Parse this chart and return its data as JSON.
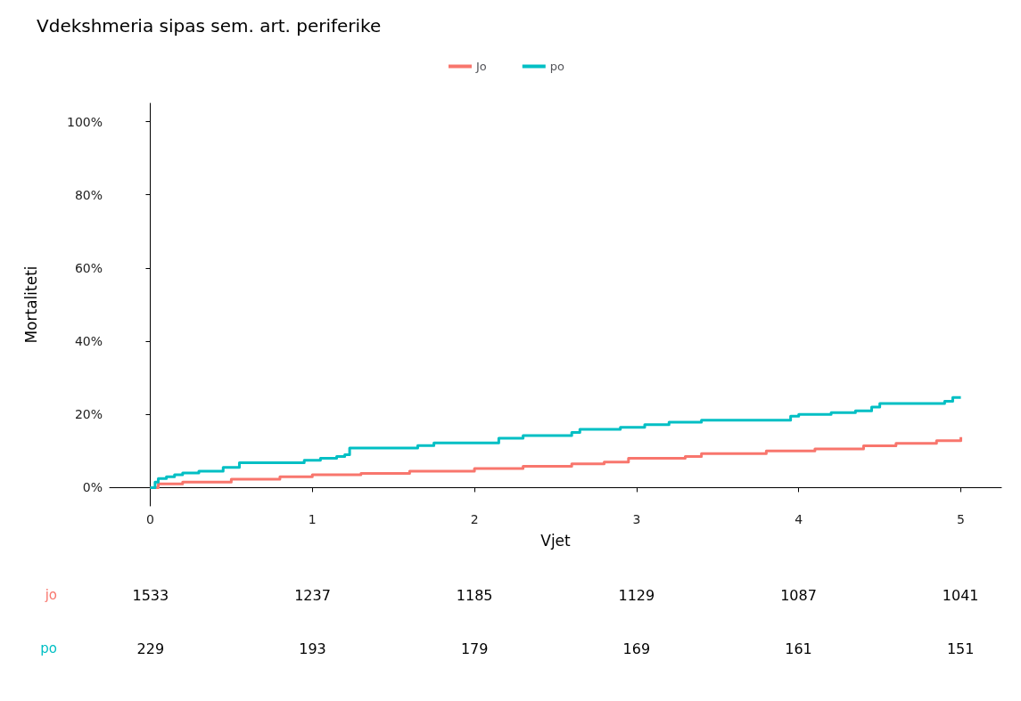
{
  "chart_data": [
    {
      "type": "step",
      "title": "Vdekshmeria sipas sem. art. periferike",
      "xlabel": "Vjet",
      "ylabel": "Mortaliteti",
      "legend": "top",
      "xlim": [
        -0.25,
        5.25
      ],
      "xticks": [
        0,
        1,
        2,
        3,
        4,
        5
      ],
      "ylim": [
        -5,
        105
      ],
      "yticks": [
        {
          "value": 0,
          "label": "0%"
        },
        {
          "value": 20,
          "label": "20%"
        },
        {
          "value": 40,
          "label": "40%"
        },
        {
          "value": 60,
          "label": "60%"
        },
        {
          "value": 80,
          "label": "80%"
        },
        {
          "value": 100,
          "label": "100%"
        }
      ],
      "series": [
        {
          "name": "Jo",
          "color": "#f8766d",
          "x": [
            0,
            0.05,
            0.2,
            0.5,
            0.8,
            1,
            1.3,
            1.6,
            2,
            2.3,
            2.6,
            2.8,
            2.95,
            3.3,
            3.4,
            3.8,
            4.1,
            4.4,
            4.6,
            4.85,
            5
          ],
          "values": [
            0,
            1,
            1.5,
            2.3,
            3,
            3.5,
            3.9,
            4.5,
            5.2,
            5.8,
            6.5,
            7,
            8,
            8.5,
            9.3,
            10,
            10.6,
            11.4,
            12.1,
            12.8,
            13.8
          ]
        },
        {
          "name": "po",
          "color": "#00bfc4",
          "x": [
            0,
            0.03,
            0.05,
            0.1,
            0.15,
            0.2,
            0.3,
            0.45,
            0.55,
            0.95,
            1.05,
            1.15,
            1.2,
            1.23,
            1.6,
            1.65,
            1.75,
            2.15,
            2.3,
            2.6,
            2.65,
            2.9,
            3.05,
            3.2,
            3.4,
            3.95,
            4.0,
            4.2,
            4.35,
            4.45,
            4.5,
            4.9,
            4.95,
            5
          ],
          "values": [
            0,
            1.5,
            2.5,
            3,
            3.5,
            4,
            4.5,
            5.5,
            6.8,
            7.5,
            8,
            8.5,
            9,
            10.8,
            10.8,
            11.5,
            12.2,
            13.5,
            14.2,
            15.1,
            15.9,
            16.5,
            17.2,
            17.9,
            18.4,
            19.5,
            20,
            20.5,
            21,
            22,
            23,
            23.6,
            24.6,
            24.6
          ]
        }
      ]
    },
    {
      "type": "heatmap",
      "categories": [
        null,
        null,
        null,
        null,
        null,
        null
      ],
      "y_categories": [
        "jo",
        "po"
      ],
      "data_labels": true,
      "cells": [
        [
          1533,
          1237,
          1185,
          1129,
          1087,
          1041
        ],
        [
          229,
          193,
          179,
          169,
          161,
          151
        ]
      ]
    }
  ]
}
